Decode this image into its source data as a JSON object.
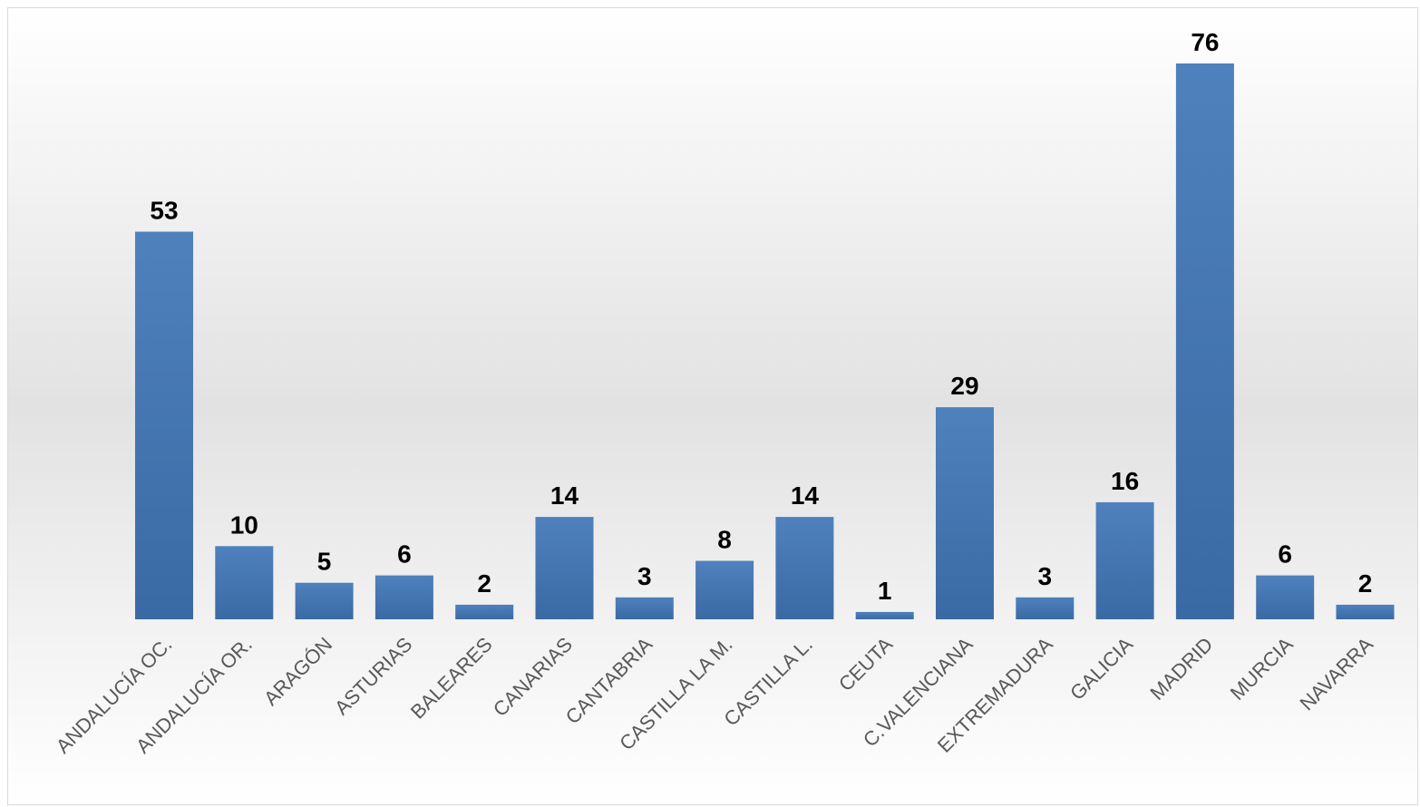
{
  "chart_data": {
    "type": "bar",
    "categories": [
      "ANDALUCÍA OC.",
      "ANDALUCÍA OR.",
      "ARAGÓN",
      "ASTURIAS",
      "BALEARES",
      "CANARIAS",
      "CANTABRIA",
      "CASTILLA LA M.",
      "CASTILLA L.",
      "CEUTA",
      "C.VALENCIANA",
      "EXTREMADURA",
      "GALICIA",
      "MADRID",
      "MURCIA",
      "NAVARRA"
    ],
    "values": [
      53,
      10,
      5,
      6,
      2,
      14,
      3,
      8,
      14,
      1,
      29,
      3,
      16,
      76,
      6,
      2
    ],
    "title": "",
    "xlabel": "",
    "ylabel": "",
    "ylim": [
      0,
      76
    ],
    "grid": false,
    "legend": "none",
    "data_labels": true,
    "colors": {
      "bar_top": "#4f81bd",
      "bar_bottom": "#3a6aa3",
      "label_text": "#000000",
      "category_text": "#595959"
    }
  }
}
